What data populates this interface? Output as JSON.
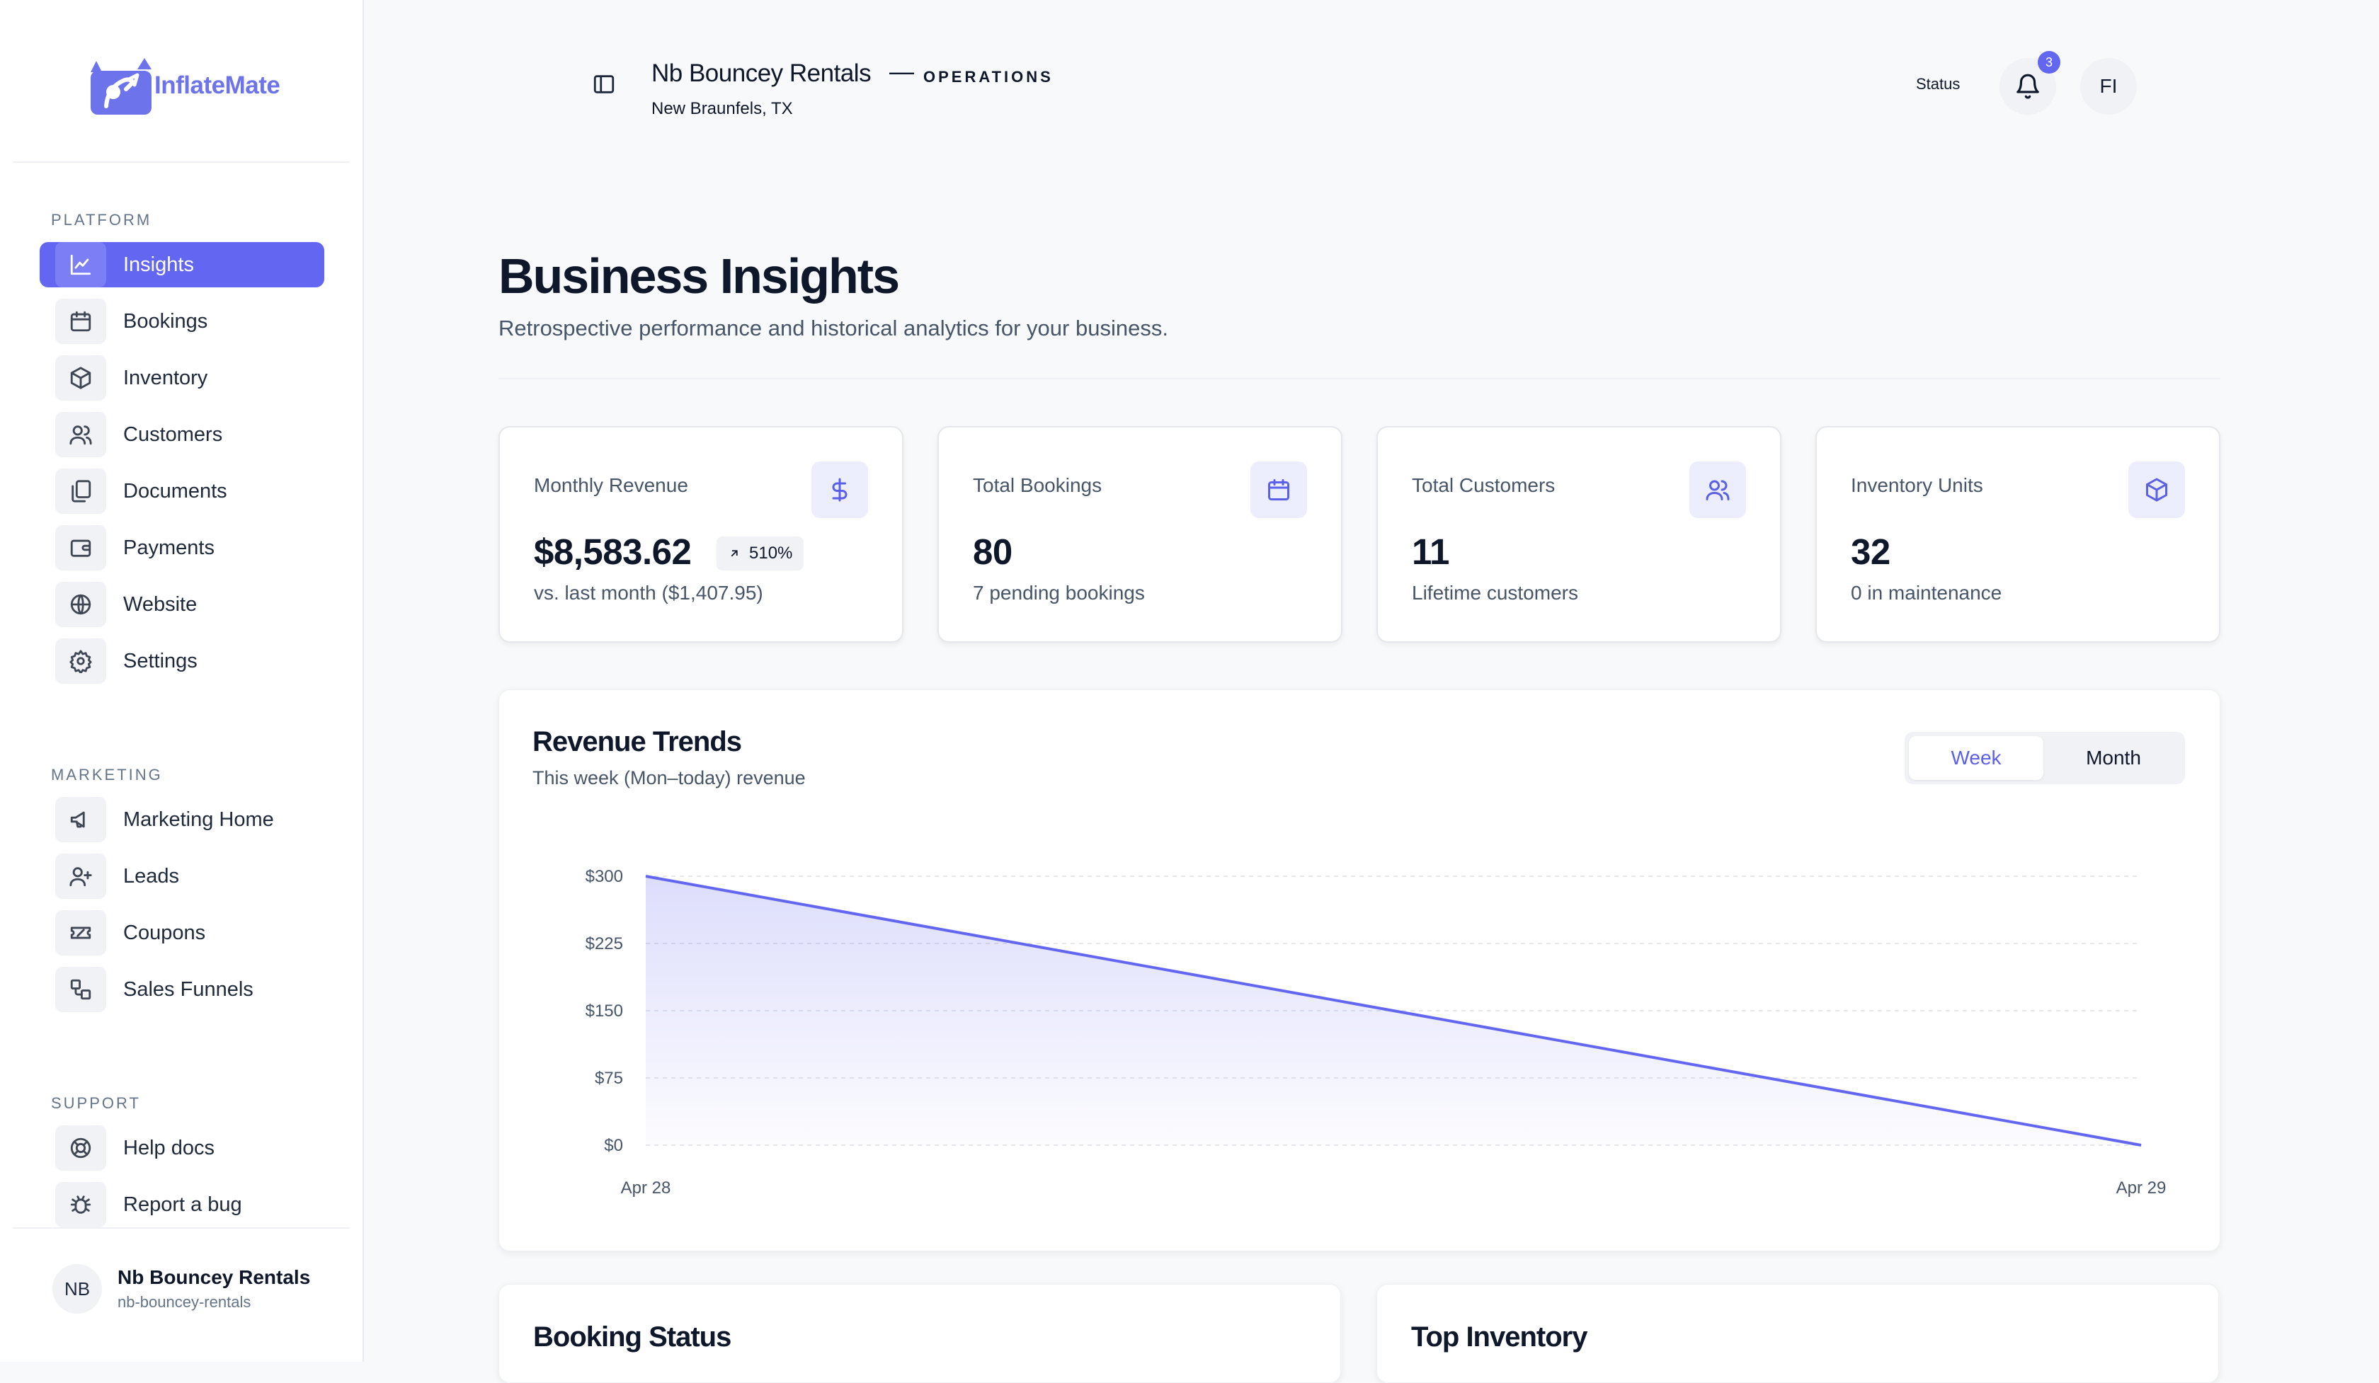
{
  "brand": {
    "name": "InflateMate",
    "accent": "#6366f1"
  },
  "sidebar": {
    "sections": [
      {
        "label": "PLATFORM"
      },
      {
        "label": "MARKETING"
      },
      {
        "label": "SUPPORT"
      }
    ],
    "platform_items": [
      {
        "label": "Insights",
        "icon": "chart-line-icon",
        "active": true
      },
      {
        "label": "Bookings",
        "icon": "calendar-icon"
      },
      {
        "label": "Inventory",
        "icon": "box-icon"
      },
      {
        "label": "Customers",
        "icon": "users-icon"
      },
      {
        "label": "Documents",
        "icon": "documents-icon"
      },
      {
        "label": "Payments",
        "icon": "wallet-icon"
      },
      {
        "label": "Website",
        "icon": "globe-icon"
      },
      {
        "label": "Settings",
        "icon": "gear-icon"
      }
    ],
    "marketing_items": [
      {
        "label": "Marketing Home",
        "icon": "megaphone-icon"
      },
      {
        "label": "Leads",
        "icon": "user-plus-icon"
      },
      {
        "label": "Coupons",
        "icon": "ticket-icon"
      },
      {
        "label": "Sales Funnels",
        "icon": "funnel-icon"
      }
    ],
    "support_items": [
      {
        "label": "Help docs",
        "icon": "lifebuoy-icon"
      },
      {
        "label": "Report a bug",
        "icon": "bug-icon"
      }
    ],
    "account": {
      "initials": "NB",
      "name": "Nb Bouncey Rentals",
      "slug": "nb-bouncey-rentals"
    }
  },
  "header": {
    "business_name": "Nb Bouncey Rentals",
    "separator": "—",
    "context": "OPERATIONS",
    "location": "New Braunfels, TX",
    "status_label": "Status",
    "notification_count": "3",
    "user_initials": "FI"
  },
  "page": {
    "title": "Business Insights",
    "subtitle": "Retrospective performance and historical analytics for your business."
  },
  "stats": [
    {
      "label": "Monthly Revenue",
      "value": "$8,583.62",
      "badge": "510%",
      "sub": "vs. last month ($1,407.95)",
      "icon": "dollar-icon"
    },
    {
      "label": "Total Bookings",
      "value": "80",
      "sub": "7 pending bookings",
      "icon": "calendar-icon"
    },
    {
      "label": "Total Customers",
      "value": "11",
      "sub": "Lifetime customers",
      "icon": "users-icon"
    },
    {
      "label": "Inventory Units",
      "value": "32",
      "sub": "0 in maintenance",
      "icon": "box-icon"
    }
  ],
  "revenue_trends": {
    "title": "Revenue Trends",
    "subtitle": "This week (Mon–today) revenue",
    "toggle": {
      "week": "Week",
      "month": "Month",
      "selected": "Week"
    }
  },
  "chart_data": {
    "type": "area",
    "x": [
      "Apr 28",
      "Apr 29"
    ],
    "series": [
      {
        "values": [
          300,
          0
        ],
        "color": "#6366f1"
      }
    ],
    "ylim": [
      0,
      300
    ],
    "yticks": [
      0,
      75,
      150,
      225,
      300
    ],
    "ytick_labels": [
      "$0",
      "$75",
      "$150",
      "$225",
      "$300"
    ],
    "grid": true
  },
  "bottom_cards": {
    "booking_status": "Booking Status",
    "top_inventory": "Top Inventory"
  }
}
